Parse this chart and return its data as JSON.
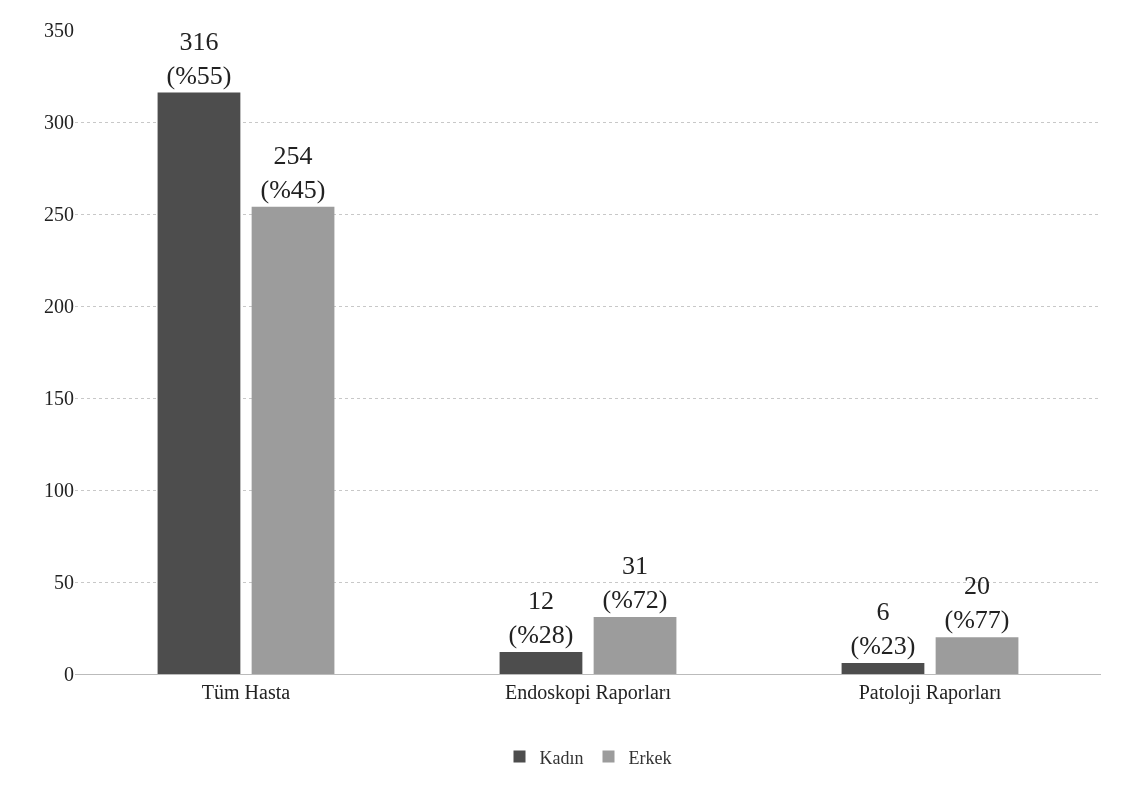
{
  "chart_data": {
    "type": "bar",
    "categories": [
      "Tüm Hasta",
      "Endoskopi Raporları",
      "Patoloji Raporları"
    ],
    "series": [
      {
        "name": "Kadın",
        "color": "#4d4d4d",
        "values": [
          316,
          12,
          6
        ],
        "value_labels": [
          "316\n(%55)",
          "12\n(%28)",
          "6\n(%23)"
        ]
      },
      {
        "name": "Erkek",
        "color": "#9c9c9c",
        "values": [
          254,
          31,
          20
        ],
        "value_labels": [
          "254\n(%45)",
          "31\n(%72)",
          "20\n(%77)"
        ]
      }
    ],
    "ylim": [
      0,
      350
    ],
    "yticks": [
      0,
      50,
      100,
      150,
      200,
      250,
      300,
      350
    ],
    "grid": "y",
    "legend": "bottom"
  }
}
